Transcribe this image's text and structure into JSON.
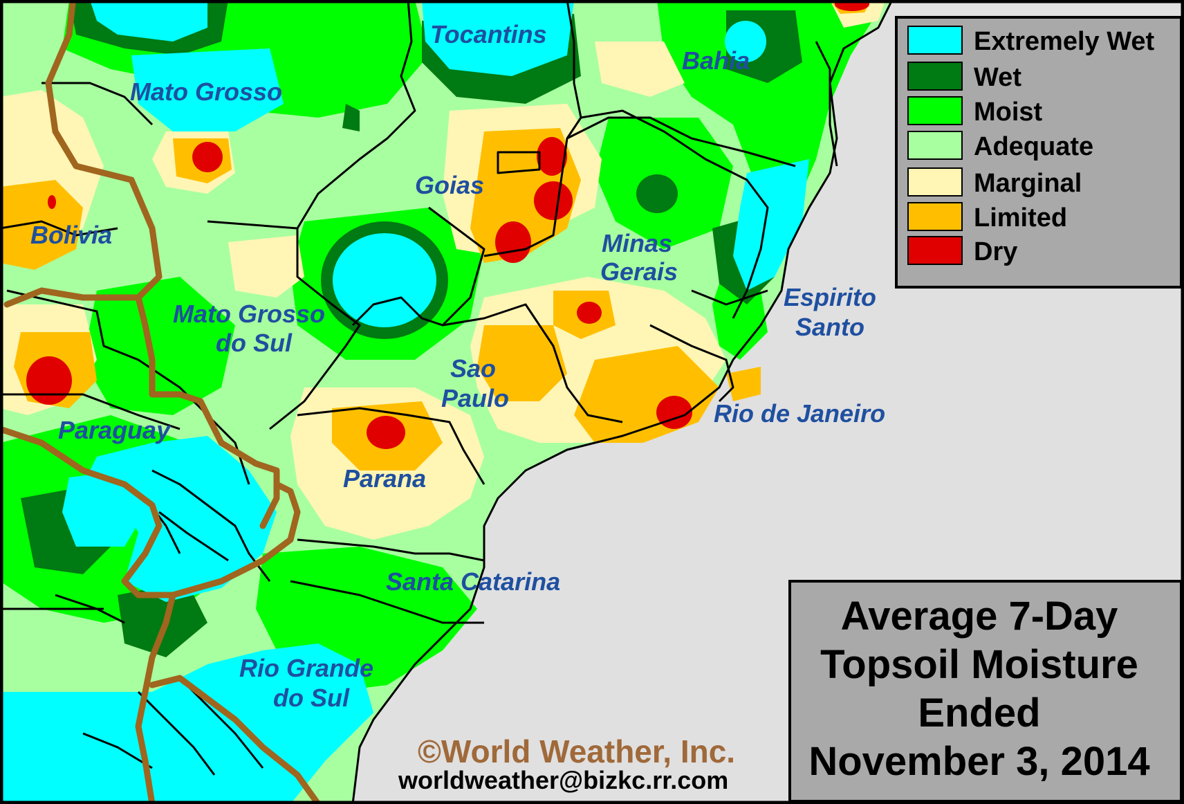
{
  "map": {
    "regions": [
      {
        "id": "tocantins",
        "lines": [
          "Tocantins"
        ]
      },
      {
        "id": "bahia",
        "lines": [
          "Bahia"
        ]
      },
      {
        "id": "mato-grosso",
        "lines": [
          "Mato Grosso"
        ]
      },
      {
        "id": "goias",
        "lines": [
          "Goias"
        ]
      },
      {
        "id": "bolivia",
        "lines": [
          "Bolivia"
        ]
      },
      {
        "id": "minas-gerais",
        "lines": [
          "Minas",
          "Gerais"
        ]
      },
      {
        "id": "mato-grosso-do-sul",
        "lines": [
          "Mato Grosso",
          "do Sul"
        ]
      },
      {
        "id": "espirito-santo",
        "lines": [
          "Espirito",
          "Santo"
        ]
      },
      {
        "id": "sao-paulo",
        "lines": [
          "Sao",
          "Paulo"
        ]
      },
      {
        "id": "rio-de-janeiro",
        "lines": [
          "Rio de Janeiro"
        ]
      },
      {
        "id": "paraguay",
        "lines": [
          "Paraguay"
        ]
      },
      {
        "id": "parana",
        "lines": [
          "Parana"
        ]
      },
      {
        "id": "santa-catarina",
        "lines": [
          "Santa Catarina"
        ]
      },
      {
        "id": "rio-grande-do-sul",
        "lines": [
          "Rio Grande",
          "do Sul"
        ]
      }
    ]
  },
  "legend": {
    "items": [
      {
        "label": "Extremely Wet",
        "color": "#00ffff"
      },
      {
        "label": "Wet",
        "color": "#007a12"
      },
      {
        "label": "Moist",
        "color": "#00ff00"
      },
      {
        "label": "Adequate",
        "color": "#a8ffa0"
      },
      {
        "label": "Marginal",
        "color": "#fff5b4"
      },
      {
        "label": "Limited",
        "color": "#ffbf00"
      },
      {
        "label": "Dry",
        "color": "#e00000"
      }
    ]
  },
  "title": {
    "lines": [
      "Average 7-Day",
      "Topsoil Moisture",
      "Ended",
      "November 3, 2014"
    ]
  },
  "credits": {
    "copyright": "©World Weather, Inc.",
    "email": "worldweather@bizkc.rr.com"
  },
  "colors": {
    "ocean": "#e0e0e0",
    "panel": "#a9a9a9",
    "label": "#1f4fa0",
    "border_country": "#a0651e",
    "border_state": "#000000"
  }
}
